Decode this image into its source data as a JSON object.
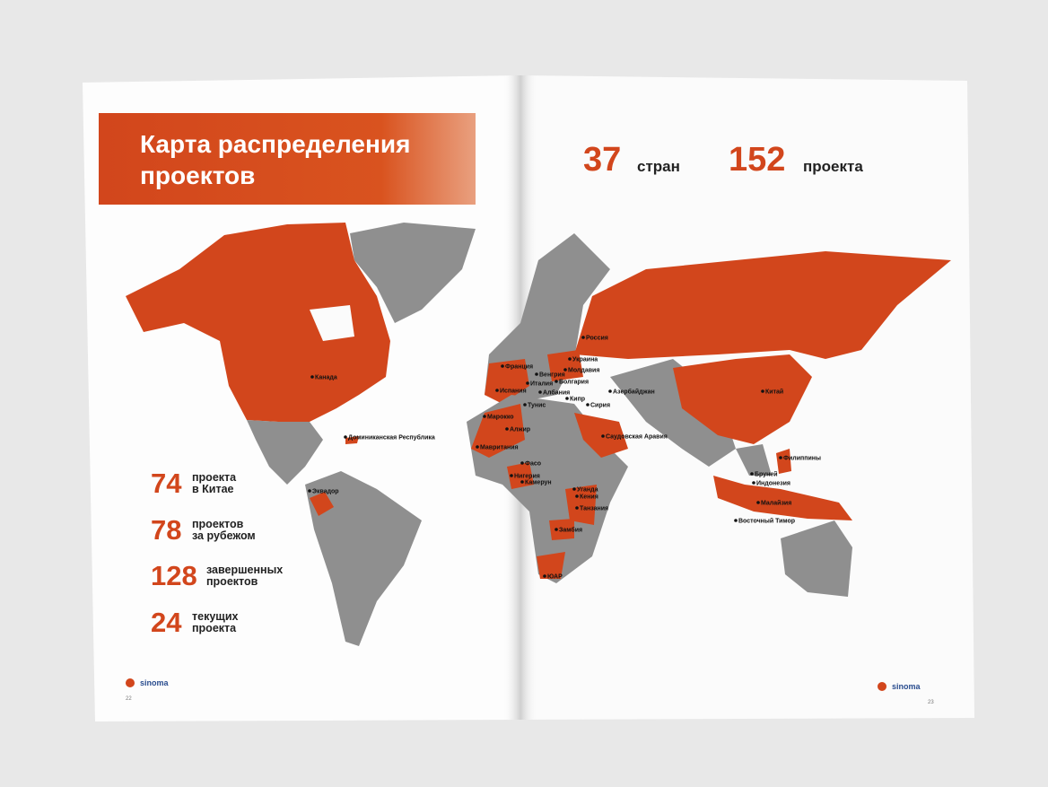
{
  "title": [
    "Карта распределения",
    "проектов"
  ],
  "top_stats": [
    {
      "number": 37,
      "label": "стран"
    },
    {
      "number": 152,
      "label": "проекта"
    }
  ],
  "side_stats": [
    {
      "number": 74,
      "lines": [
        "проекта",
        "в Китае"
      ]
    },
    {
      "number": 78,
      "lines": [
        "проектов",
        "за рубежом"
      ]
    },
    {
      "number": 128,
      "lines": [
        "завершенных",
        "проектов"
      ]
    },
    {
      "number": 24,
      "lines": [
        "текущих",
        "проекта"
      ]
    }
  ],
  "map_labels": [
    "Канада",
    "Доминиканская Республика",
    "Эквадор",
    "Франция",
    "Испания",
    "Италия",
    "Венгрия",
    "Украина",
    "Молдавия",
    "Болгария",
    "Албания",
    "Тунис",
    "Алжир",
    "Марокко",
    "Мавритания",
    "Кипр",
    "Сирия",
    "Азербайджан",
    "Россия",
    "Саудовская Аравия",
    "Китай",
    "Филиппины",
    "Бруней",
    "Индонезия",
    "Малайзия",
    "Восточный Тимор",
    "Уганда",
    "Кения",
    "Танзания",
    "Замбия",
    "ЮАР",
    "Нигерия",
    "Камерун",
    "Фасо"
  ],
  "logo": "sinoma",
  "page_numbers": [
    "22",
    "23"
  ]
}
